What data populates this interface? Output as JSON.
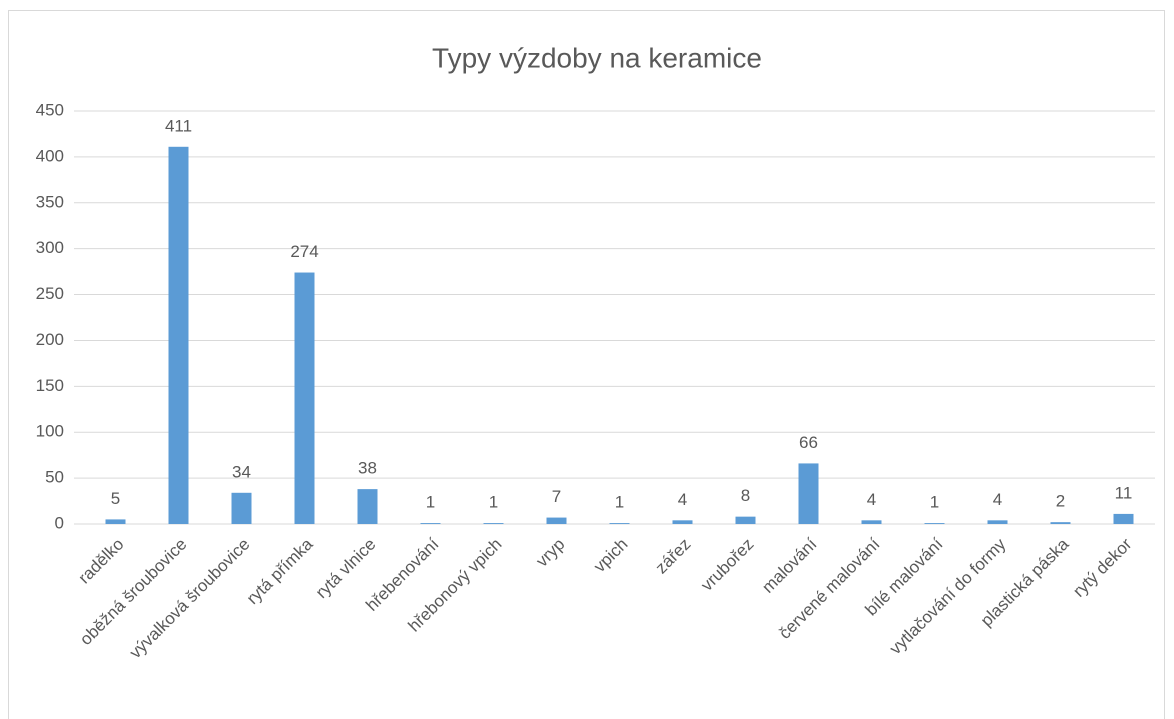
{
  "chart_data": {
    "type": "bar",
    "title": "Typy výzdoby na keramice",
    "categories": [
      "radělko",
      "oběžná šroubovice",
      "vývalková šroubovice",
      "rytá přímka",
      "rytá vlnice",
      "hřebenování",
      "hřebonový vpich",
      "vryp",
      "vpich",
      "zářez",
      "vrubořez",
      "malování",
      "červené malování",
      "bílé malování",
      "vytlačování do formy",
      "plastická páska",
      "rytý dekor"
    ],
    "values": [
      5,
      411,
      34,
      274,
      38,
      1,
      1,
      7,
      1,
      4,
      8,
      66,
      4,
      1,
      4,
      2,
      11
    ],
    "color": "#5b9bd5",
    "ylim": [
      0,
      450
    ],
    "yticks": [
      0,
      50,
      100,
      150,
      200,
      250,
      300,
      350,
      400,
      450
    ],
    "grid": true,
    "data_labels": true
  }
}
